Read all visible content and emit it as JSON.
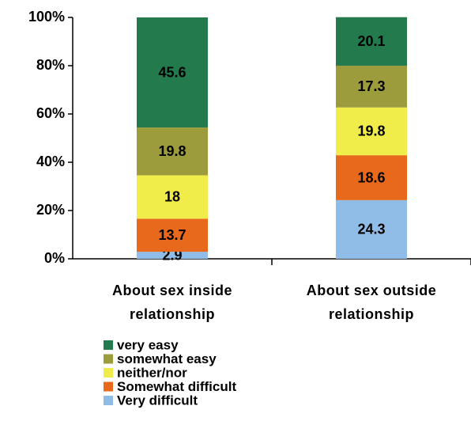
{
  "chart_data": {
    "type": "stacked_bar",
    "categories": [
      "About sex inside relationship",
      "About sex outside relationship"
    ],
    "series": [
      {
        "name": "Very difficult",
        "color": "#8fbde8",
        "values": [
          2.9,
          24.3
        ]
      },
      {
        "name": "Somewhat difficult",
        "color": "#e8681c",
        "values": [
          13.7,
          18.6
        ]
      },
      {
        "name": "neither/nor",
        "color": "#f0ec4a",
        "values": [
          18,
          19.8
        ]
      },
      {
        "name": "somewhat easy",
        "color": "#9c9c3c",
        "values": [
          19.8,
          17.3
        ]
      },
      {
        "name": "very easy",
        "color": "#237a4c",
        "values": [
          45.6,
          20.1
        ]
      }
    ],
    "ylim": [
      0,
      100
    ],
    "yticks": [
      {
        "value": 0,
        "label": "0%"
      },
      {
        "value": 20,
        "label": "20%"
      },
      {
        "value": 40,
        "label": "40%"
      },
      {
        "value": 60,
        "label": "60%"
      },
      {
        "value": 80,
        "label": "80%"
      },
      {
        "value": 100,
        "label": "100%"
      }
    ],
    "legend": "bottom-left"
  }
}
